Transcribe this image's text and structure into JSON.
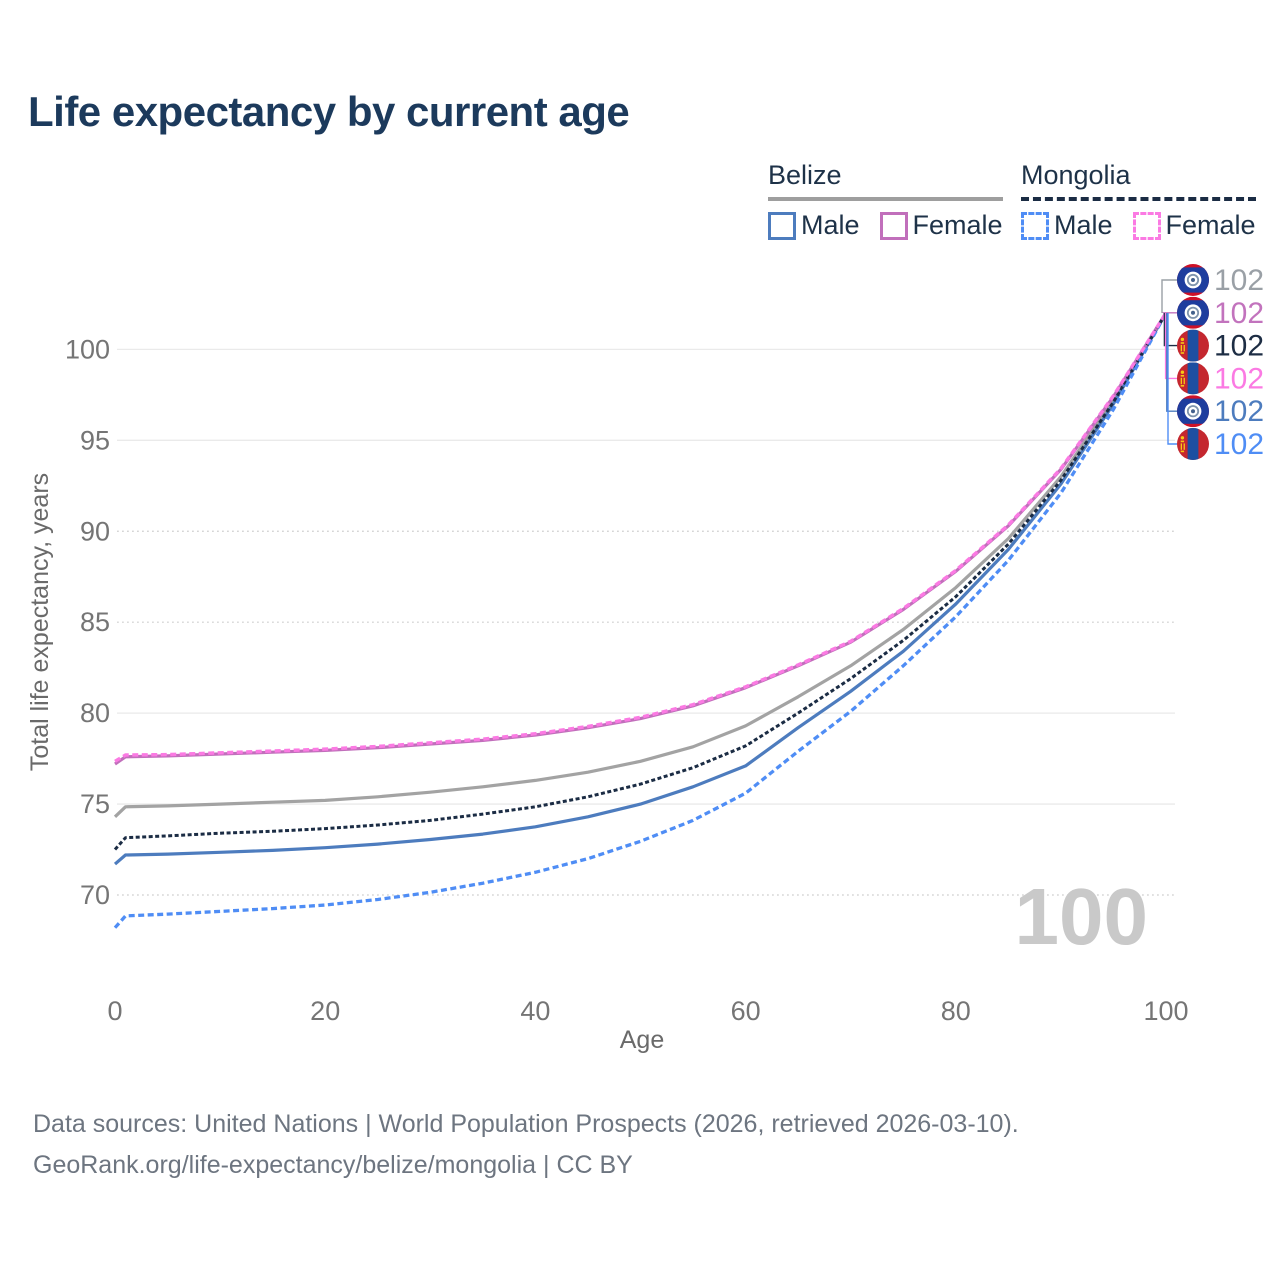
{
  "title": "Life expectancy by current age",
  "legend": {
    "groups": [
      {
        "id": "belize",
        "label": "Belize",
        "line_style": "solid",
        "line_color": "#9e9e9e",
        "items": [
          {
            "label": "Male",
            "color": "#4d7cbe",
            "dashed": false
          },
          {
            "label": "Female",
            "color": "#c16fbb",
            "dashed": false
          }
        ]
      },
      {
        "id": "mongolia",
        "label": "Mongolia",
        "line_style": "dashed",
        "line_color": "#1b2c44",
        "items": [
          {
            "label": "Male",
            "color": "#4f8df5",
            "dashed": true
          },
          {
            "label": "Female",
            "color": "#fb7ae3",
            "dashed": true
          }
        ]
      }
    ]
  },
  "chart_data": {
    "type": "line",
    "title": "Life expectancy by current age",
    "xlabel": "Age",
    "ylabel": "Total life expectancy, years",
    "xticks": [
      0,
      20,
      40,
      60,
      80,
      100
    ],
    "yticks": [
      70,
      75,
      80,
      85,
      90,
      95,
      100
    ],
    "dotted_gridlines": [
      70,
      85,
      90
    ],
    "xlim": [
      0,
      100
    ],
    "ylim": [
      66.5,
      103
    ],
    "grid": true,
    "watermark": "100",
    "series": [
      {
        "id": "belize-total",
        "name": "Belize",
        "country": "Belize",
        "sex": "both",
        "color": "#a3a3a3",
        "dash": null,
        "width": 3.2,
        "points": [
          [
            0,
            74.3
          ],
          [
            1,
            74.85
          ],
          [
            5,
            74.9
          ],
          [
            10,
            75.0
          ],
          [
            15,
            75.1
          ],
          [
            20,
            75.2
          ],
          [
            25,
            75.4
          ],
          [
            30,
            75.65
          ],
          [
            35,
            75.95
          ],
          [
            40,
            76.3
          ],
          [
            45,
            76.75
          ],
          [
            50,
            77.35
          ],
          [
            55,
            78.15
          ],
          [
            60,
            79.3
          ],
          [
            65,
            80.9
          ],
          [
            70,
            82.6
          ],
          [
            75,
            84.6
          ],
          [
            80,
            86.9
          ],
          [
            85,
            89.6
          ],
          [
            90,
            93.0
          ],
          [
            95,
            97.2
          ],
          [
            100,
            102
          ]
        ]
      },
      {
        "id": "belize-male",
        "name": "Belize Male",
        "country": "Belize",
        "sex": "male",
        "color": "#4d7cbe",
        "dash": null,
        "width": 3.2,
        "points": [
          [
            0,
            71.7
          ],
          [
            1,
            72.2
          ],
          [
            5,
            72.25
          ],
          [
            10,
            72.35
          ],
          [
            15,
            72.45
          ],
          [
            20,
            72.6
          ],
          [
            25,
            72.8
          ],
          [
            30,
            73.05
          ],
          [
            35,
            73.35
          ],
          [
            40,
            73.75
          ],
          [
            45,
            74.3
          ],
          [
            50,
            75.0
          ],
          [
            55,
            75.95
          ],
          [
            60,
            77.1
          ],
          [
            65,
            79.2
          ],
          [
            70,
            81.2
          ],
          [
            75,
            83.4
          ],
          [
            80,
            86.0
          ],
          [
            85,
            89.0
          ],
          [
            90,
            92.6
          ],
          [
            95,
            97.0
          ],
          [
            100,
            102
          ]
        ]
      },
      {
        "id": "belize-female",
        "name": "Belize Female",
        "country": "Belize",
        "sex": "female",
        "color": "#c16fbb",
        "dash": null,
        "width": 3.2,
        "points": [
          [
            0,
            77.2
          ],
          [
            1,
            77.6
          ],
          [
            5,
            77.65
          ],
          [
            10,
            77.75
          ],
          [
            15,
            77.85
          ],
          [
            20,
            77.95
          ],
          [
            25,
            78.1
          ],
          [
            30,
            78.3
          ],
          [
            35,
            78.5
          ],
          [
            40,
            78.8
          ],
          [
            45,
            79.2
          ],
          [
            50,
            79.7
          ],
          [
            55,
            80.4
          ],
          [
            60,
            81.4
          ],
          [
            65,
            82.6
          ],
          [
            70,
            83.9
          ],
          [
            75,
            85.7
          ],
          [
            80,
            87.8
          ],
          [
            85,
            90.3
          ],
          [
            90,
            93.4
          ],
          [
            95,
            97.4
          ],
          [
            100,
            102
          ]
        ]
      },
      {
        "id": "mongolia-total",
        "name": "Mongolia",
        "country": "Mongolia",
        "sex": "both",
        "color": "#1b2c44",
        "dash": "4 2.5",
        "width": 3.0,
        "points": [
          [
            0,
            72.5
          ],
          [
            1,
            73.15
          ],
          [
            5,
            73.25
          ],
          [
            10,
            73.4
          ],
          [
            15,
            73.5
          ],
          [
            20,
            73.65
          ],
          [
            25,
            73.85
          ],
          [
            30,
            74.1
          ],
          [
            35,
            74.45
          ],
          [
            40,
            74.85
          ],
          [
            45,
            75.4
          ],
          [
            50,
            76.1
          ],
          [
            55,
            77.0
          ],
          [
            60,
            78.2
          ],
          [
            65,
            80.0
          ],
          [
            70,
            81.9
          ],
          [
            75,
            84.0
          ],
          [
            80,
            86.4
          ],
          [
            85,
            89.3
          ],
          [
            90,
            92.8
          ],
          [
            95,
            97.1
          ],
          [
            100,
            102
          ]
        ]
      },
      {
        "id": "mongolia-male",
        "name": "Mongolia Male",
        "country": "Mongolia",
        "sex": "male",
        "color": "#4f8df5",
        "dash": "6 3.5",
        "width": 3.3,
        "points": [
          [
            0,
            68.2
          ],
          [
            1,
            68.85
          ],
          [
            5,
            68.95
          ],
          [
            10,
            69.1
          ],
          [
            15,
            69.25
          ],
          [
            20,
            69.45
          ],
          [
            25,
            69.75
          ],
          [
            30,
            70.15
          ],
          [
            35,
            70.65
          ],
          [
            40,
            71.25
          ],
          [
            45,
            72.0
          ],
          [
            50,
            72.95
          ],
          [
            55,
            74.1
          ],
          [
            60,
            75.6
          ],
          [
            65,
            77.9
          ],
          [
            70,
            80.1
          ],
          [
            75,
            82.6
          ],
          [
            80,
            85.3
          ],
          [
            85,
            88.4
          ],
          [
            90,
            92.1
          ],
          [
            95,
            96.7
          ],
          [
            100,
            102
          ]
        ]
      },
      {
        "id": "mongolia-female",
        "name": "Mongolia Female",
        "country": "Mongolia",
        "sex": "female",
        "color": "#fb7ae3",
        "dash": "6 3.5",
        "width": 3.4,
        "points": [
          [
            0,
            77.35
          ],
          [
            1,
            77.7
          ],
          [
            5,
            77.72
          ],
          [
            10,
            77.82
          ],
          [
            15,
            77.92
          ],
          [
            20,
            78.02
          ],
          [
            25,
            78.17
          ],
          [
            30,
            78.37
          ],
          [
            35,
            78.57
          ],
          [
            40,
            78.87
          ],
          [
            45,
            79.27
          ],
          [
            50,
            79.77
          ],
          [
            55,
            80.47
          ],
          [
            60,
            81.45
          ],
          [
            65,
            82.65
          ],
          [
            70,
            83.95
          ],
          [
            75,
            85.75
          ],
          [
            80,
            87.85
          ],
          [
            85,
            90.35
          ],
          [
            90,
            93.45
          ],
          [
            95,
            97.45
          ],
          [
            100,
            102
          ]
        ]
      }
    ],
    "end_labels": [
      {
        "value": "102",
        "series": "Belize",
        "flag": "belize",
        "color": "#9aa0a6"
      },
      {
        "value": "102",
        "series": "Belize Female",
        "flag": "belize",
        "color": "#c273bd"
      },
      {
        "value": "102",
        "series": "Mongolia",
        "flag": "mongolia",
        "color": "#1d2d44"
      },
      {
        "value": "102",
        "series": "Mongolia Female",
        "flag": "mongolia",
        "color": "#fb7ae3"
      },
      {
        "value": "102",
        "series": "Belize Male",
        "flag": "belize",
        "color": "#4d7cbe"
      },
      {
        "value": "102",
        "series": "Mongolia Male",
        "flag": "mongolia",
        "color": "#4f8df5"
      }
    ],
    "flag_colors": {
      "belize": {
        "field": "#1e3d9e",
        "stripe": "#ce1127",
        "disc": "#ffffff",
        "ring": "#7f94ad",
        "dot": "#44618c"
      },
      "mongolia": {
        "red": "#c4272f",
        "blue": "#1c4fa1",
        "soyombo": "#f6c915"
      }
    }
  },
  "footer": {
    "line1": "Data sources: United Nations | World Population Prospects (2026, retrieved 2026-03-10).",
    "line2": "GeoRank.org/life-expectancy/belize/mongolia | CC BY"
  }
}
